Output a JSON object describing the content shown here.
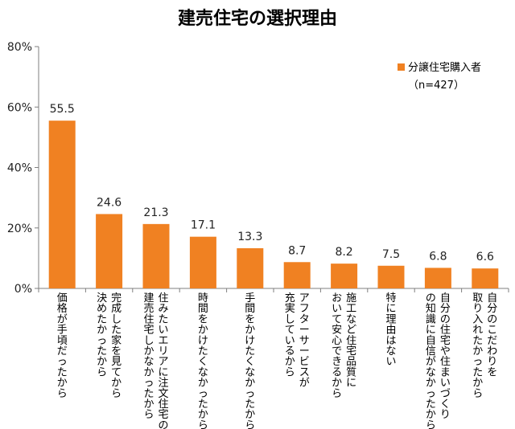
{
  "chart_data": {
    "type": "bar",
    "title": "建売住宅の選択理由",
    "ylim": [
      0,
      80
    ],
    "yticks": [
      0,
      20,
      40,
      60,
      80
    ],
    "ytick_labels": [
      "0%",
      "20%",
      "40%",
      "60%",
      "80%"
    ],
    "grid": false,
    "legend": {
      "position": "top-right",
      "note": "（n=427）"
    },
    "series": [
      {
        "name": "分譲住宅購入者",
        "color": "#F08122",
        "values": [
          55.5,
          24.6,
          21.3,
          17.1,
          13.3,
          8.7,
          8.2,
          7.5,
          6.8,
          6.6
        ]
      }
    ],
    "data_labels": [
      "55.5",
      "24.6",
      "21.3",
      "17.1",
      "13.3",
      "8.7",
      "8.2",
      "7.5",
      "6.8",
      "6.6"
    ],
    "categories": [
      [
        "価格が手頃だったから"
      ],
      [
        "完成した家を見てから",
        "決めたかったから"
      ],
      [
        "住みたいエリアに注文住宅の",
        "建売住宅しかなかったから"
      ],
      [
        "時間をかけたくなかったから"
      ],
      [
        "手間をかけたくなかったから"
      ],
      [
        "アフターサービスが",
        "充実しているから"
      ],
      [
        "施工など住宅品質に",
        "おいて安心できるから"
      ],
      [
        "特に理由はない"
      ],
      [
        "自分の住宅や住まいづくり",
        "の知識に自信がなかったから"
      ],
      [
        "自分のこだわりを",
        "取り入れたかったから"
      ]
    ]
  }
}
